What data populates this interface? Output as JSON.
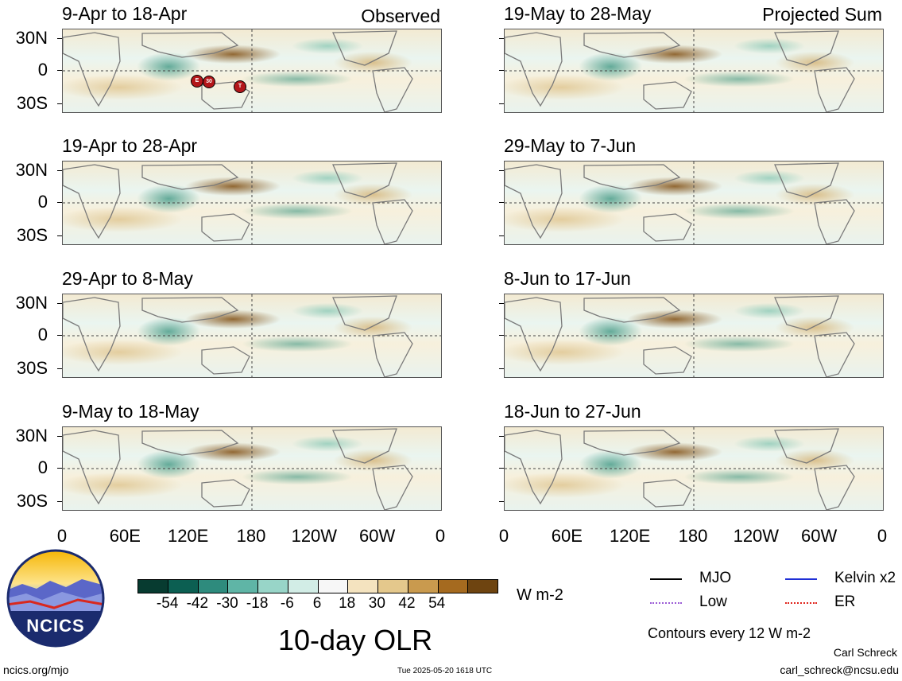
{
  "observed_title": "Observed",
  "projected_title": "Projected Sum",
  "observed_panels": [
    {
      "label": "9-Apr to 18-Apr"
    },
    {
      "label": "19-Apr to 28-Apr"
    },
    {
      "label": "29-Apr to 8-May"
    },
    {
      "label": "9-May to 18-May"
    }
  ],
  "projected_panels": [
    {
      "label": "19-May to 28-May"
    },
    {
      "label": "29-May to 7-Jun"
    },
    {
      "label": "8-Jun to 17-Jun"
    },
    {
      "label": "18-Jun to 27-Jun"
    }
  ],
  "lat_labels": [
    "30N",
    "0",
    "30S"
  ],
  "lon_labels": [
    "0",
    "60E",
    "120E",
    "180",
    "120W",
    "60W",
    "0"
  ],
  "mjo_markers": [
    "E",
    "30",
    "T"
  ],
  "colorbar": {
    "colors": [
      "#073b30",
      "#0c5f52",
      "#2e8b7d",
      "#5fb5a6",
      "#98d5c8",
      "#d2ede6",
      "#f7f7f7",
      "#f4e3bf",
      "#e4c88c",
      "#c99a4e",
      "#a56a1f",
      "#6e4410"
    ],
    "labels": [
      "-54",
      "-42",
      "-30",
      "-18",
      "-6",
      "6",
      "18",
      "30",
      "42",
      "54"
    ],
    "units": "W m-2"
  },
  "legend": [
    {
      "label": "MJO",
      "color": "#000000",
      "style": "solid"
    },
    {
      "label": "Kelvin x2",
      "color": "#1f2fd6",
      "style": "solid"
    },
    {
      "label": "Low",
      "color": "#9b5bd6",
      "style": "dotted"
    },
    {
      "label": "ER",
      "color": "#e0241c",
      "style": "dotted"
    }
  ],
  "contours_text": "Contours every 12 W m-2",
  "main_title": "10-day OLR",
  "logo_text": "NCICS",
  "footer_left": "ncics.org/mjo",
  "footer_center": "Tue 2025-05-20 1618 UTC",
  "author_name": "Carl Schreck",
  "author_email": "carl_schreck@ncsu.edu"
}
